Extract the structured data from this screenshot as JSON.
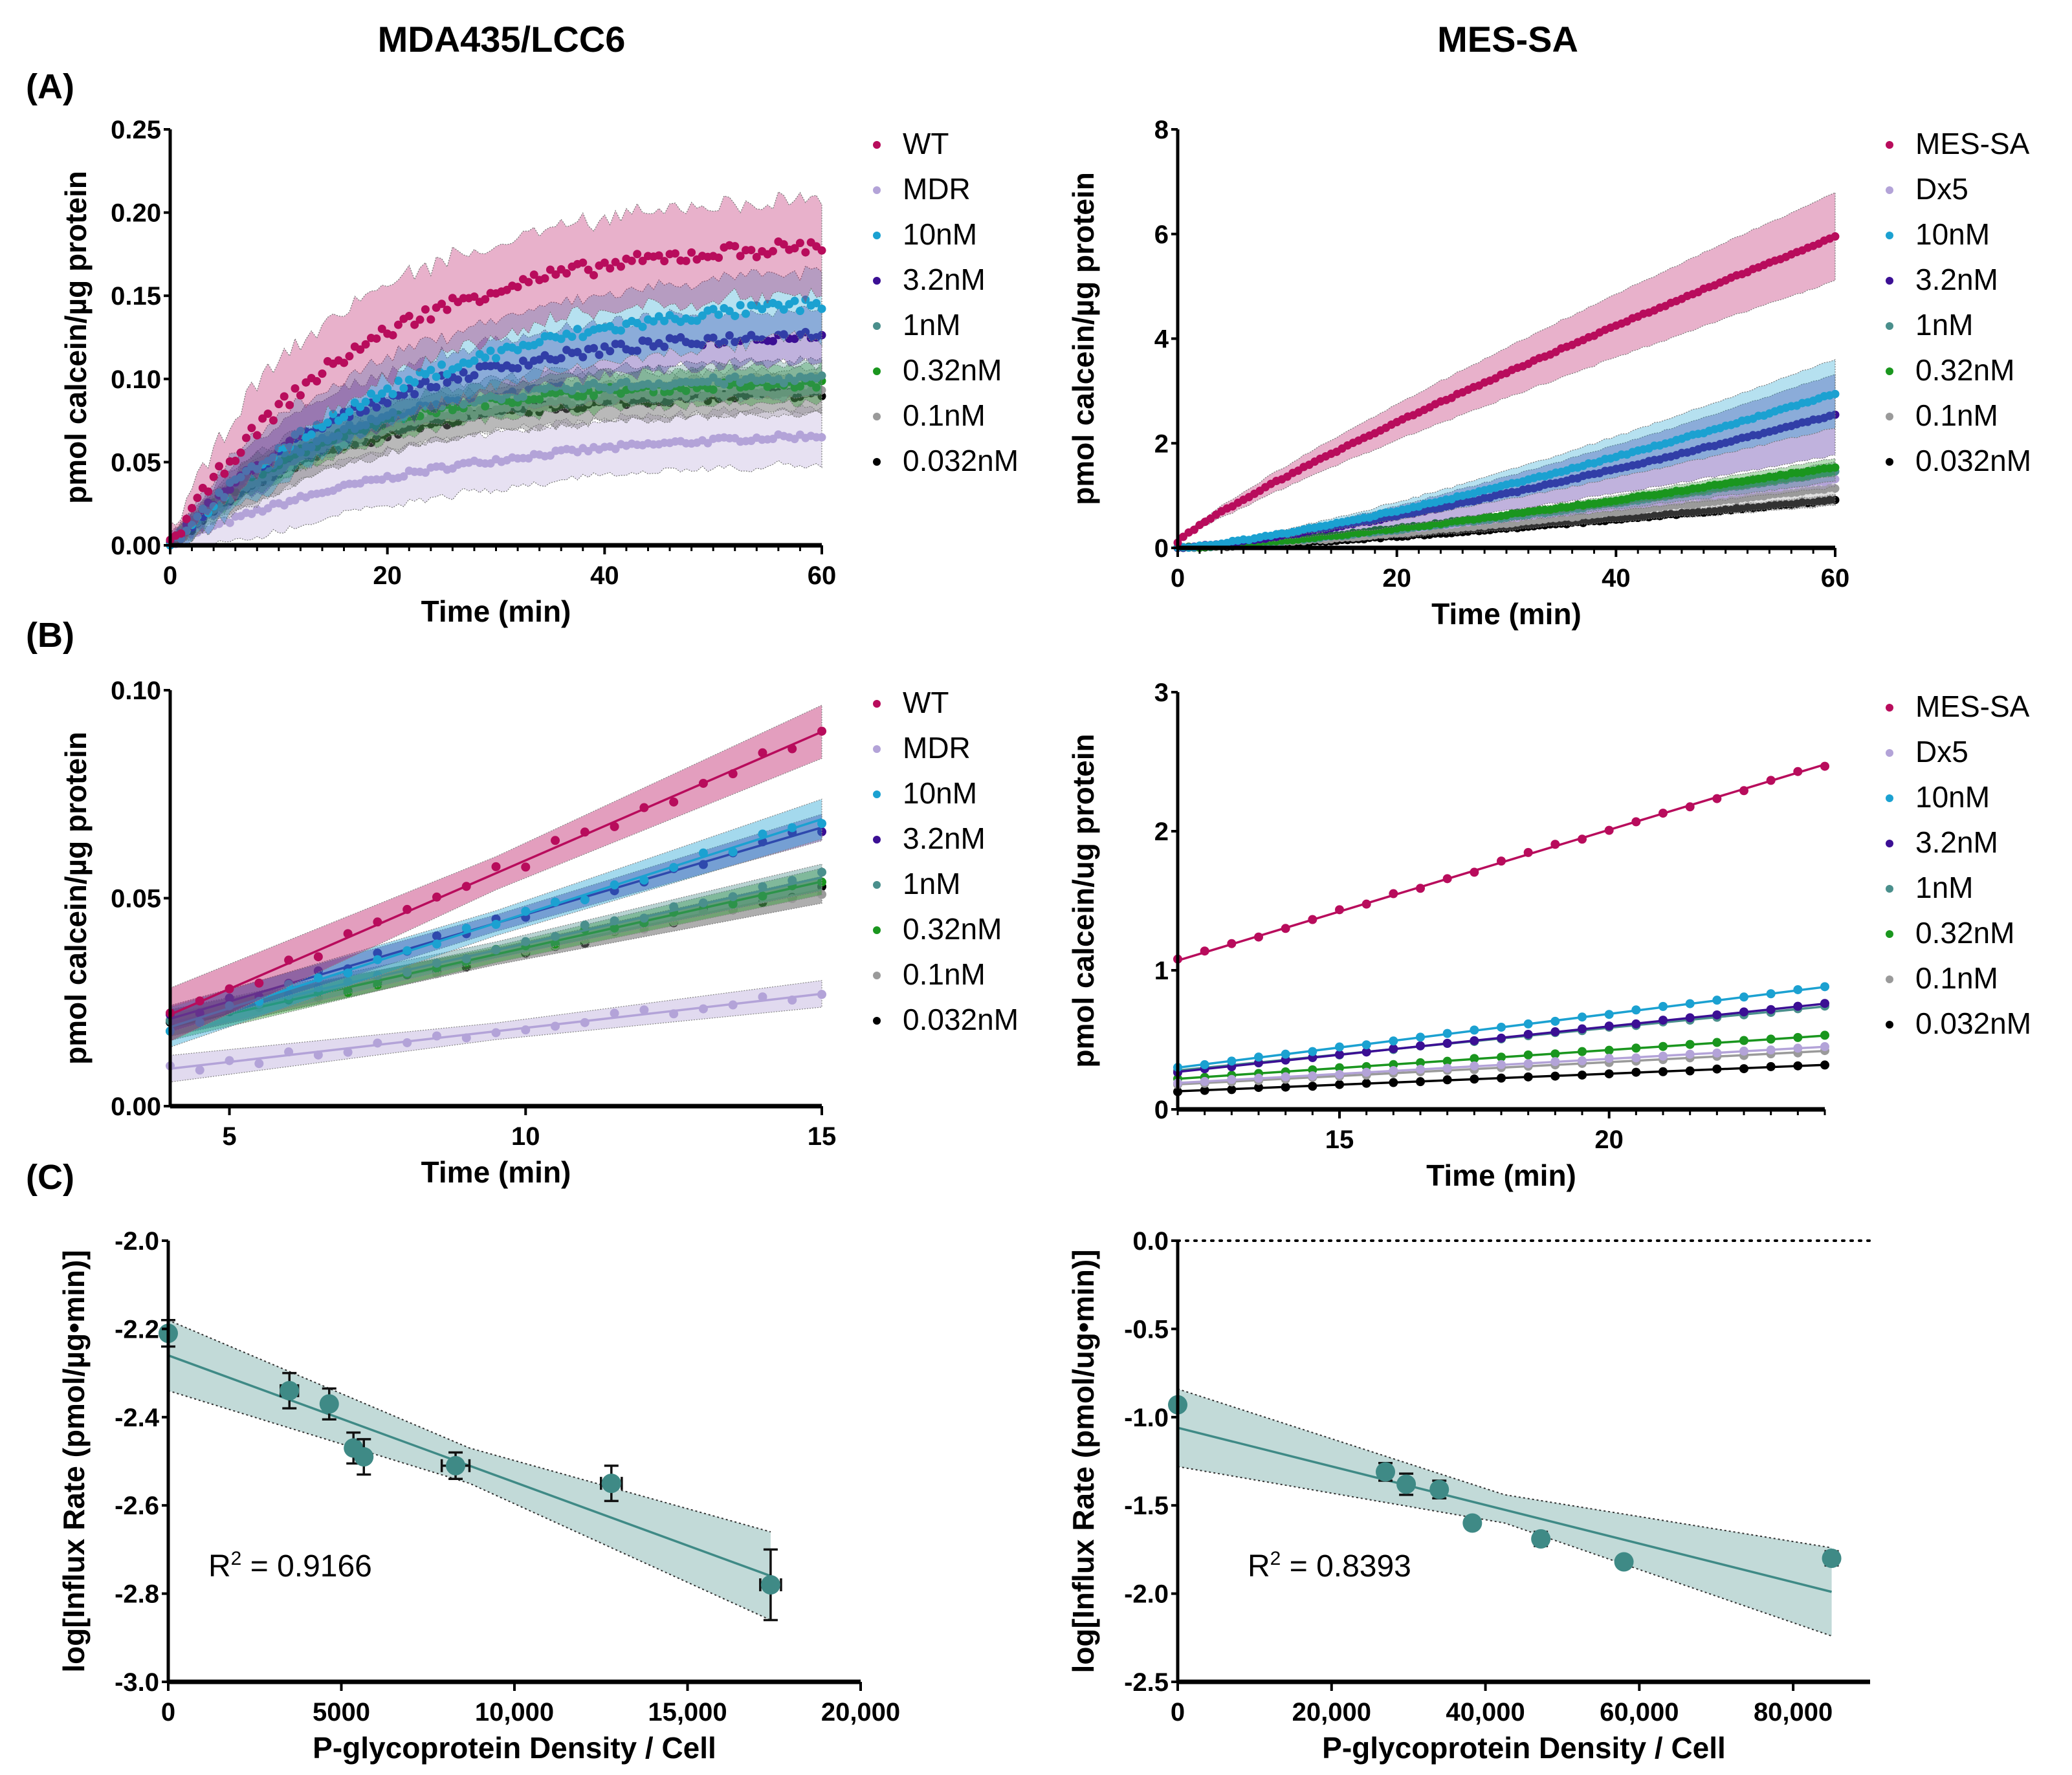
{
  "headings": {
    "left": "MDA435/LCC6",
    "right": "MES-SA"
  },
  "panel_labels": [
    "(A)",
    "(B)",
    "(C)"
  ],
  "colors": {
    "WT": "#b80c5c",
    "MDR": "#b3a3d8",
    "10nM": "#1ba1d1",
    "3.2nM": "#3b0f94",
    "1nM": "#4a8f8c",
    "0.32nM": "#1a961e",
    "0.1nM": "#9a9a9a",
    "0.032nM": "#000000",
    "MES-SA": "#b80c5c",
    "Dx5": "#b3a3d8",
    "regression": "#3f8a86",
    "band": "#b7d3d1"
  },
  "chart_data": [
    {
      "id": "A-left",
      "type": "scatter",
      "title": "",
      "xlabel": "Time (min)",
      "ylabel": "pmol calcein/µg protein",
      "xlim": [
        0,
        60
      ],
      "ylim": [
        0,
        0.25
      ],
      "xticks": [
        "0",
        "20",
        "40",
        "60"
      ],
      "xtick_values": [
        0,
        20,
        40,
        60
      ],
      "yticks": [
        "0.00",
        "0.05",
        "0.10",
        "0.15",
        "0.20",
        "0.25"
      ],
      "ytick_values": [
        0,
        0.05,
        0.1,
        0.15,
        0.2,
        0.25
      ],
      "legend": [
        "WT",
        "MDR",
        "10nM",
        "3.2nM",
        "1nM",
        "0.32nM",
        "0.1nM",
        "0.032nM"
      ],
      "legend_position": "right",
      "series_model": "saturating: y = plateau*(1-exp(-t/tau)) sampled every 0.5 min with ±SD band",
      "series": [
        {
          "name": "WT",
          "plateau": 0.195,
          "tau": 17,
          "end_value": 0.18,
          "band": 0.025
        },
        {
          "name": "MDR",
          "plateau": 0.075,
          "tau": 24,
          "end_value": 0.066,
          "band": 0.015
        },
        {
          "name": "10nM",
          "plateau": 0.155,
          "tau": 22,
          "end_value": 0.145,
          "band": 0.018
        },
        {
          "name": "3.2nM",
          "plateau": 0.132,
          "tau": 18,
          "end_value": 0.127,
          "band": 0.014
        },
        {
          "name": "1nM",
          "plateau": 0.103,
          "tau": 14,
          "end_value": 0.1,
          "band": 0.01
        },
        {
          "name": "0.32nM",
          "plateau": 0.1,
          "tau": 14,
          "end_value": 0.097,
          "band": 0.01
        },
        {
          "name": "0.1nM",
          "plateau": 0.096,
          "tau": 15,
          "end_value": 0.093,
          "band": 0.012
        },
        {
          "name": "0.032nM",
          "plateau": 0.094,
          "tau": 16,
          "end_value": 0.091,
          "band": 0.01
        }
      ]
    },
    {
      "id": "A-right",
      "type": "scatter",
      "title": "",
      "xlabel": "Time (min)",
      "ylabel": "pmol calcein/µg protein",
      "xlim": [
        0,
        60
      ],
      "ylim": [
        0,
        8
      ],
      "xticks": [
        "0",
        "20",
        "40",
        "60"
      ],
      "xtick_values": [
        0,
        20,
        40,
        60
      ],
      "yticks": [
        "0",
        "2",
        "4",
        "6",
        "8"
      ],
      "ytick_values": [
        0,
        2,
        4,
        6,
        8
      ],
      "legend": [
        "MES-SA",
        "Dx5",
        "10nM",
        "3.2nM",
        "1nM",
        "0.32nM",
        "0.1nM",
        "0.032nM"
      ],
      "legend_position": "right",
      "series_model": "near-linear growth sampled every 0.5 min with ±SD band",
      "series": [
        {
          "name": "MES-SA",
          "start": 0.1,
          "end_value": 5.95,
          "curve": 0.85,
          "band_frac": 0.14
        },
        {
          "name": "Dx5",
          "start": 0,
          "end_value": 1.3,
          "curve": 1.2,
          "band_frac": 0.1
        },
        {
          "name": "10nM",
          "start": 0,
          "end_value": 2.95,
          "curve": 1.3,
          "band_frac": 0.22
        },
        {
          "name": "3.2nM",
          "start": 0,
          "end_value": 2.55,
          "curve": 1.3,
          "band_frac": 0.3
        },
        {
          "name": "1nM",
          "start": 0,
          "end_value": 1.45,
          "curve": 1.3,
          "band_frac": 0.12
        },
        {
          "name": "0.32nM",
          "start": 0,
          "end_value": 1.55,
          "curve": 1.3,
          "band_frac": 0.1
        },
        {
          "name": "0.1nM",
          "start": 0,
          "end_value": 1.15,
          "curve": 1.3,
          "band_frac": 0.25
        },
        {
          "name": "0.032nM",
          "start": 0,
          "end_value": 0.92,
          "curve": 1.3,
          "band_frac": 0.1
        }
      ]
    },
    {
      "id": "B-left",
      "type": "scatter",
      "title": "",
      "xlabel": "Time (min)",
      "ylabel": "pmol calcein/µg protein",
      "xlim": [
        4,
        15
      ],
      "ylim": [
        0,
        0.1
      ],
      "xticks": [
        "5",
        "10",
        "15"
      ],
      "xtick_values": [
        5,
        10,
        15
      ],
      "yticks": [
        "0.00",
        "0.05",
        "0.10"
      ],
      "ytick_values": [
        0,
        0.05,
        0.1
      ],
      "legend": [
        "WT",
        "MDR",
        "10nM",
        "3.2nM",
        "1nM",
        "0.32nM",
        "0.1nM",
        "0.032nM"
      ],
      "legend_position": "right",
      "series_model": "linear fit with 95% CI band; points every 0.5 min from 4 to 15",
      "series": [
        {
          "name": "WT",
          "y_at_4": 0.022,
          "y_at_15": 0.09,
          "band": 0.004
        },
        {
          "name": "MDR",
          "y_at_4": 0.009,
          "y_at_15": 0.027,
          "band": 0.002
        },
        {
          "name": "10nM",
          "y_at_4": 0.019,
          "y_at_15": 0.069,
          "band": 0.003
        },
        {
          "name": "3.2nM",
          "y_at_4": 0.021,
          "y_at_15": 0.067,
          "band": 0.002
        },
        {
          "name": "1nM",
          "y_at_4": 0.02,
          "y_at_15": 0.055,
          "band": 0.002
        },
        {
          "name": "0.32nM",
          "y_at_4": 0.019,
          "y_at_15": 0.054,
          "band": 0.002
        },
        {
          "name": "0.1nM",
          "y_at_4": 0.02,
          "y_at_15": 0.052,
          "band": 0.002
        },
        {
          "name": "0.032nM",
          "y_at_4": 0.02,
          "y_at_15": 0.052,
          "band": 0.002
        }
      ]
    },
    {
      "id": "B-right",
      "type": "scatter",
      "title": "",
      "xlabel": "Time (min)",
      "ylabel": "pmol calcein/ug protein",
      "xlim": [
        12,
        24
      ],
      "ylim": [
        0,
        3
      ],
      "xticks": [
        "15",
        "20"
      ],
      "xtick_values": [
        15,
        20
      ],
      "yticks": [
        "0",
        "1",
        "2",
        "3"
      ],
      "ytick_values": [
        0,
        1,
        2,
        3
      ],
      "legend": [
        "MES-SA",
        "Dx5",
        "10nM",
        "3.2nM",
        "1nM",
        "0.32nM",
        "0.1nM",
        "0.032nM"
      ],
      "legend_position": "right",
      "series_model": "linear fit; points every 0.5 min from 12 to 24",
      "series": [
        {
          "name": "MES-SA",
          "y_at_start": 1.07,
          "y_at_end": 2.48
        },
        {
          "name": "Dx5",
          "y_at_start": 0.19,
          "y_at_end": 0.45
        },
        {
          "name": "10nM",
          "y_at_start": 0.3,
          "y_at_end": 0.88
        },
        {
          "name": "3.2nM",
          "y_at_start": 0.27,
          "y_at_end": 0.76
        },
        {
          "name": "1nM",
          "y_at_start": 0.28,
          "y_at_end": 0.74
        },
        {
          "name": "0.32nM",
          "y_at_start": 0.22,
          "y_at_end": 0.53
        },
        {
          "name": "0.1nM",
          "y_at_start": 0.18,
          "y_at_end": 0.42
        },
        {
          "name": "0.032nM",
          "y_at_start": 0.13,
          "y_at_end": 0.32
        }
      ]
    },
    {
      "id": "C-left",
      "type": "scatter",
      "title": "",
      "xlabel": "P-glycoprotein Density / Cell",
      "ylabel": "log[Influx Rate (pmol/µg•min)]",
      "xlim": [
        0,
        20000
      ],
      "ylim": [
        -3.0,
        -2.0
      ],
      "xticks": [
        "0",
        "5000",
        "10,000",
        "15,000",
        "20,000"
      ],
      "xtick_values": [
        0,
        5000,
        10000,
        15000,
        20000
      ],
      "yticks": [
        "-3.0",
        "-2.8",
        "-2.6",
        "-2.4",
        "-2.2",
        "-2.0"
      ],
      "ytick_values": [
        -3.0,
        -2.8,
        -2.6,
        -2.4,
        -2.2,
        -2.0
      ],
      "annotation": "R² = 0.9166",
      "r2_label": "R",
      "r2_sup": "2",
      "r2_value": "= 0.9166",
      "points": [
        {
          "x": 0,
          "y": -2.21,
          "yerr": 0.03,
          "xerr": 0
        },
        {
          "x": 3500,
          "y": -2.34,
          "yerr": 0.04,
          "xerr": 250
        },
        {
          "x": 4650,
          "y": -2.37,
          "yerr": 0.035,
          "xerr": 150
        },
        {
          "x": 5350,
          "y": -2.47,
          "yerr": 0.035,
          "xerr": 100
        },
        {
          "x": 5650,
          "y": -2.49,
          "yerr": 0.04,
          "xerr": 100
        },
        {
          "x": 8300,
          "y": -2.51,
          "yerr": 0.03,
          "xerr": 400
        },
        {
          "x": 12800,
          "y": -2.55,
          "yerr": 0.04,
          "xerr": 300
        },
        {
          "x": 17400,
          "y": -2.78,
          "yerr": 0.08,
          "xerr": 300
        }
      ],
      "fit": {
        "x0": 0,
        "y0": -2.26,
        "x1": 17400,
        "y1": -2.76
      },
      "ci_upper": [
        [
          0,
          -2.18
        ],
        [
          8700,
          -2.47
        ],
        [
          17400,
          -2.66
        ]
      ],
      "ci_lower": [
        [
          0,
          -2.34
        ],
        [
          8700,
          -2.55
        ],
        [
          17400,
          -2.86
        ]
      ]
    },
    {
      "id": "C-right",
      "type": "scatter",
      "title": "",
      "xlabel": "P-glycoprotein Density / Cell",
      "ylabel": "log[Influx Rate (pmol/ug•min)]",
      "xlim": [
        0,
        90000
      ],
      "ylim": [
        -2.5,
        0.0
      ],
      "xticks": [
        "0",
        "20,000",
        "40,000",
        "60,000",
        "80,000"
      ],
      "xtick_values": [
        0,
        20000,
        40000,
        60000,
        80000
      ],
      "yticks": [
        "-2.5",
        "-2.0",
        "-1.5",
        "-1.0",
        "-0.5",
        "0.0"
      ],
      "ytick_values": [
        -2.5,
        -2.0,
        -1.5,
        -1.0,
        -0.5,
        0.0
      ],
      "reference_line": {
        "y": 0.0,
        "style": "dotted"
      },
      "annotation": "R² = 0.8393",
      "r2_label": "R",
      "r2_sup": "2",
      "r2_value": "= 0.8393",
      "points": [
        {
          "x": 0,
          "y": -0.93,
          "yerr": 0,
          "xerr": 0
        },
        {
          "x": 27000,
          "y": -1.31,
          "yerr": 0.05,
          "xerr": 0
        },
        {
          "x": 29700,
          "y": -1.38,
          "yerr": 0.06,
          "xerr": 700
        },
        {
          "x": 34000,
          "y": -1.41,
          "yerr": 0.05,
          "xerr": 700
        },
        {
          "x": 38300,
          "y": -1.6,
          "yerr": 0.02,
          "xerr": 0
        },
        {
          "x": 47200,
          "y": -1.69,
          "yerr": 0.04,
          "xerr": 0
        },
        {
          "x": 58000,
          "y": -1.82,
          "yerr": 0.02,
          "xerr": 0
        },
        {
          "x": 85000,
          "y": -1.8,
          "yerr": 0.04,
          "xerr": 0
        }
      ],
      "fit": {
        "x0": 0,
        "y0": -1.06,
        "x1": 85000,
        "y1": -1.99
      },
      "ci_upper": [
        [
          0,
          -0.84
        ],
        [
          42500,
          -1.44
        ],
        [
          85000,
          -1.74
        ]
      ],
      "ci_lower": [
        [
          0,
          -1.28
        ],
        [
          42500,
          -1.6
        ],
        [
          85000,
          -2.24
        ]
      ]
    }
  ]
}
